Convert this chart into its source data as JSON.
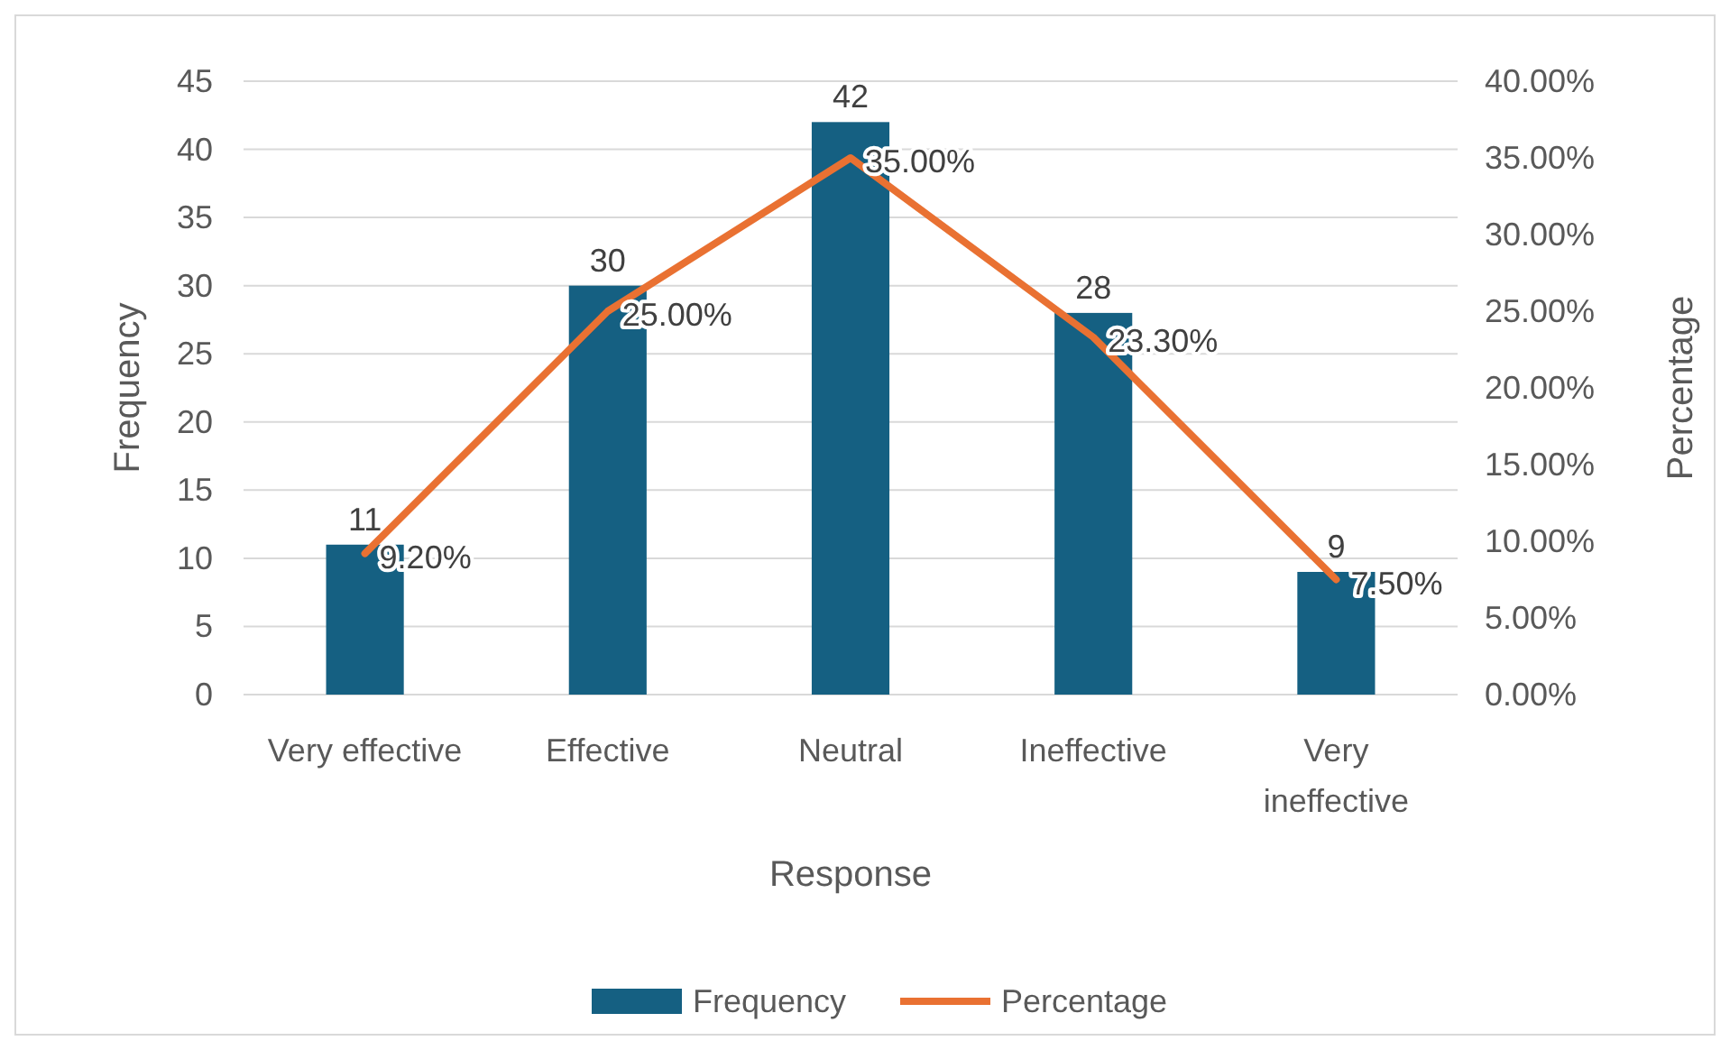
{
  "chart_data": {
    "type": "bar",
    "xlabel": "Response",
    "ylabel": "Frequency",
    "y2label": "Percentage",
    "categories": [
      "Very effective",
      "Effective",
      "Neutral",
      "Ineffective",
      "Very ineffective"
    ],
    "series": [
      {
        "name": "Frequency",
        "color": "#156082",
        "values": [
          11,
          30,
          42,
          28,
          9
        ],
        "value_labels": [
          "11",
          "30",
          "42",
          "28",
          "9"
        ]
      },
      {
        "name": "Percentage",
        "type": "line",
        "axis": "y2",
        "color": "#e97132",
        "values": [
          9.2,
          25,
          35,
          23.3,
          7.5
        ],
        "value_labels": [
          "9.20%",
          "25.00%",
          "35.00%",
          "23.30%",
          "7.50%"
        ]
      }
    ],
    "ylim": [
      0,
      45
    ],
    "yticks": [
      0,
      5,
      10,
      15,
      20,
      25,
      30,
      35,
      40,
      45
    ],
    "y2lim": [
      0,
      40
    ],
    "y2ticks": [
      {
        "value": 0,
        "label": "0.00%"
      },
      {
        "value": 5,
        "label": "5.00%"
      },
      {
        "value": 10,
        "label": "10.00%"
      },
      {
        "value": 15,
        "label": "15.00%"
      },
      {
        "value": 20,
        "label": "20.00%"
      },
      {
        "value": 25,
        "label": "25.00%"
      },
      {
        "value": 30,
        "label": "30.00%"
      },
      {
        "value": 35,
        "label": "35.00%"
      },
      {
        "value": 40,
        "label": "40.00%"
      }
    ],
    "grid": "y",
    "legend": "bottom",
    "marker": "none",
    "line_style": "solid"
  }
}
